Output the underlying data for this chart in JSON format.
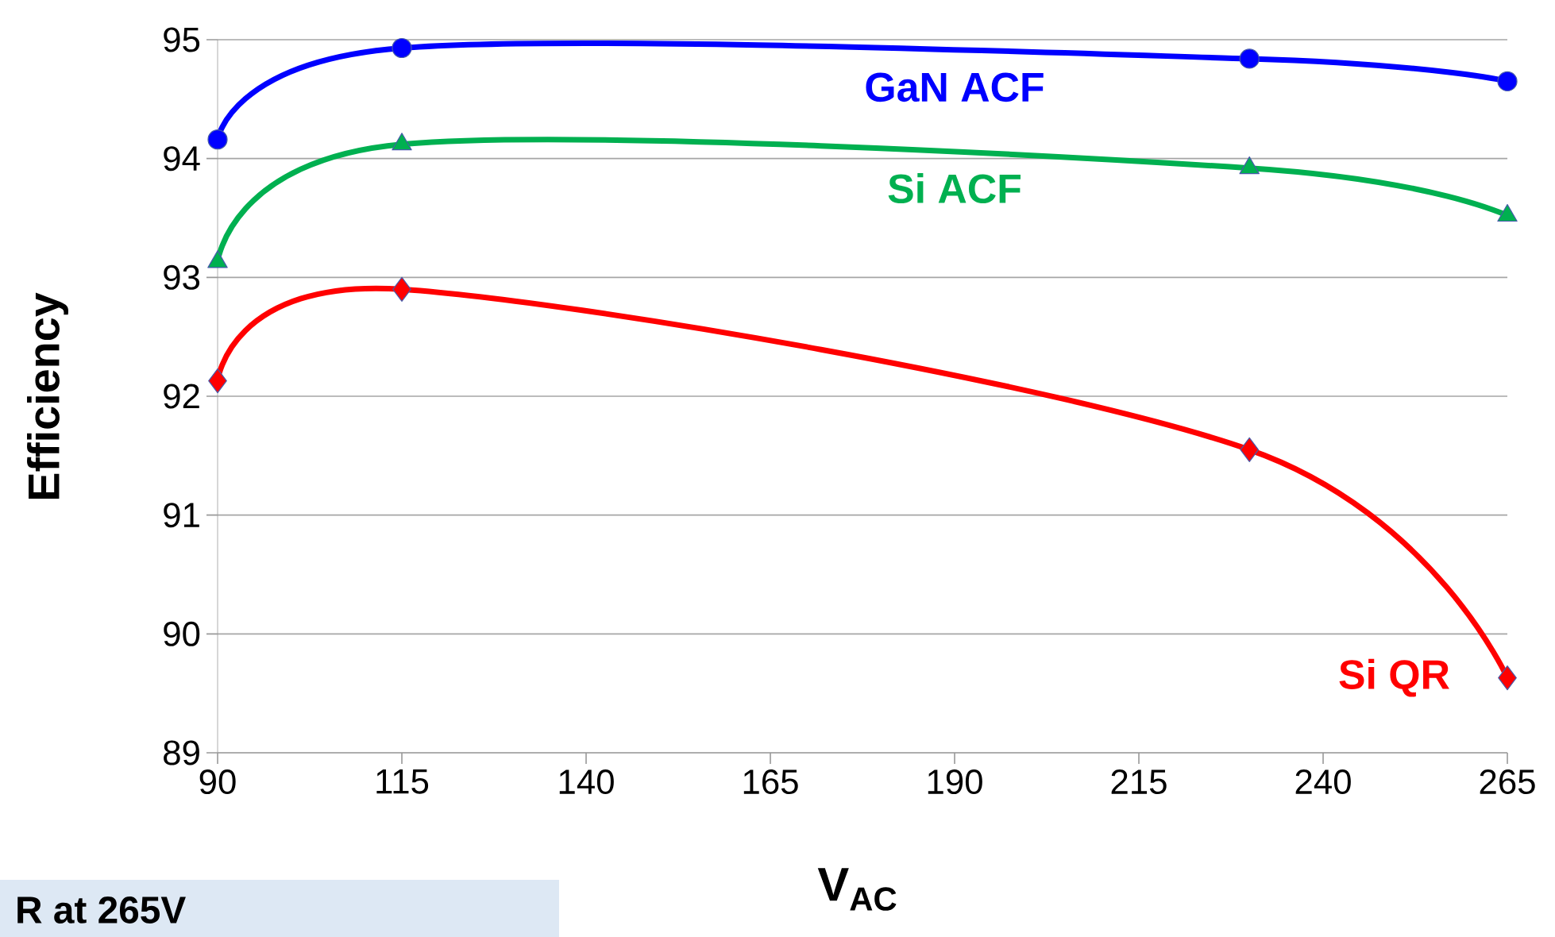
{
  "chart_data": {
    "type": "line",
    "xlabel": "V$_{AC}$",
    "ylabel": "Efficiency",
    "x": [
      90,
      115,
      230,
      265
    ],
    "series": [
      {
        "name": "GaN ACF",
        "color": "#0000ff",
        "marker": "circle",
        "values": [
          94.16,
          94.93,
          94.84,
          94.65
        ]
      },
      {
        "name": "Si ACF",
        "color": "#00b050",
        "marker": "triangle",
        "values": [
          93.13,
          94.12,
          93.92,
          93.52
        ]
      },
      {
        "name": "Si QR",
        "color": "#ff0000",
        "marker": "diamond",
        "values": [
          92.13,
          92.9,
          91.55,
          89.63
        ]
      }
    ],
    "xlim": [
      90,
      265
    ],
    "xticks": [
      90,
      115,
      140,
      165,
      190,
      215,
      240,
      265
    ],
    "ylim": [
      89,
      95
    ],
    "yticks": [
      89,
      90,
      91,
      92,
      93,
      94,
      95
    ],
    "grid": "y",
    "line_style": "solid",
    "annotations": [
      "R at 265V"
    ]
  }
}
